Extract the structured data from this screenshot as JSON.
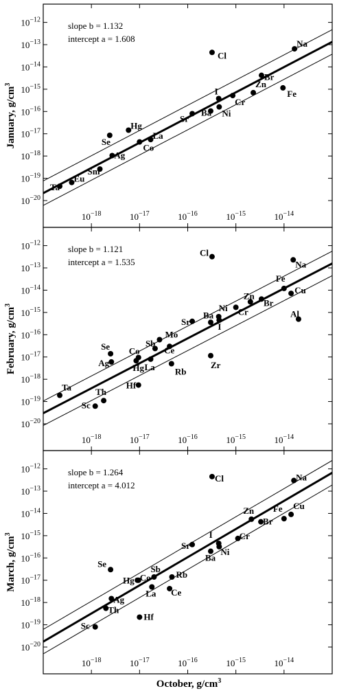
{
  "figure": {
    "x_label": "October, g/cm³"
  },
  "chart_data": [
    {
      "type": "scatter",
      "panel": "January",
      "ylabel": "January, g/cm³",
      "xlabel": "October, g/cm³",
      "x_scale": "log",
      "y_scale": "log",
      "xlim": [
        1e-19,
        1e-13
      ],
      "ylim": [
        2e-21,
        5e-12
      ],
      "x_ticks": [
        "10⁻¹⁸",
        "10⁻¹⁷",
        "10⁻¹⁶",
        "10⁻¹⁵",
        "10⁻¹⁴"
      ],
      "y_ticks": [
        "10⁻¹²",
        "10⁻¹³",
        "10⁻¹⁴",
        "10⁻¹⁵",
        "10⁻¹⁶",
        "10⁻¹⁷",
        "10⁻¹⁸",
        "10⁻¹⁹",
        "10⁻²⁰"
      ],
      "slope_label": "slope b = 1.132",
      "intercept_label": "intercept a = 1.608",
      "grid": false,
      "points": [
        {
          "label": "Ta",
          "x": 2.2e-19,
          "y": 4.4e-20
        },
        {
          "label": "Eu",
          "x": 3.9e-19,
          "y": 6.5e-20
        },
        {
          "label": "Sm",
          "x": 1.5e-18,
          "y": 2.6e-19
        },
        {
          "label": "Ag",
          "x": 2.7e-18,
          "y": 1.05e-18
        },
        {
          "label": "Se",
          "x": 2.4e-18,
          "y": 8.5e-18
        },
        {
          "label": "Hg",
          "x": 5.9e-18,
          "y": 1.45e-17
        },
        {
          "label": "Co",
          "x": 1e-17,
          "y": 4.3e-18
        },
        {
          "label": "La",
          "x": 1.7e-17,
          "y": 5.5e-18
        },
        {
          "label": "Sr",
          "x": 1.24e-16,
          "y": 8e-17
        },
        {
          "label": "Ba",
          "x": 3e-16,
          "y": 1.05e-16
        },
        {
          "label": "I",
          "x": 4.4e-16,
          "y": 3.8e-16
        },
        {
          "label": "Ni",
          "x": 4.5e-16,
          "y": 1.6e-16
        },
        {
          "label": "Cl",
          "x": 3.2e-16,
          "y": 4.5e-14
        },
        {
          "label": "Cr",
          "x": 8.6e-16,
          "y": 5.2e-16
        },
        {
          "label": "Zn",
          "x": 2.3e-15,
          "y": 7e-16
        },
        {
          "label": "Br",
          "x": 3.4e-15,
          "y": 4.2e-15
        },
        {
          "label": "Fe",
          "x": 9.5e-15,
          "y": 1.15e-15
        },
        {
          "label": "Na",
          "x": 1.65e-14,
          "y": 6.5e-14
        }
      ]
    },
    {
      "type": "scatter",
      "panel": "February",
      "ylabel": "February, g/cm³",
      "xlabel": "October, g/cm³",
      "x_scale": "log",
      "y_scale": "log",
      "xlim": [
        1e-19,
        1e-13
      ],
      "ylim": [
        2e-21,
        5e-12
      ],
      "x_ticks": [
        "10⁻¹⁸",
        "10⁻¹⁷",
        "10⁻¹⁶",
        "10⁻¹⁵",
        "10⁻¹⁴"
      ],
      "y_ticks": [
        "10⁻¹²",
        "10⁻¹³",
        "10⁻¹⁴",
        "10⁻¹⁵",
        "10⁻¹⁶",
        "10⁻¹⁷",
        "10⁻¹⁸",
        "10⁻¹⁹",
        "10⁻²⁰"
      ],
      "slope_label": "slope b = 1.121",
      "intercept_label": "intercept a = 1.535",
      "grid": false,
      "points": [
        {
          "label": "Ta",
          "x": 2.2e-19,
          "y": 1.9e-19
        },
        {
          "label": "Sc",
          "x": 1.2e-18,
          "y": 6.2e-20
        },
        {
          "label": "Th",
          "x": 1.8e-18,
          "y": 1.1e-19
        },
        {
          "label": "Se",
          "x": 2.5e-18,
          "y": 1.4e-17
        },
        {
          "label": "Ag",
          "x": 2.6e-18,
          "y": 6e-18
        },
        {
          "label": "Co",
          "x": 9.5e-18,
          "y": 9.5e-18
        },
        {
          "label": "Hg",
          "x": 8.5e-18,
          "y": 6.8e-18
        },
        {
          "label": "Hf",
          "x": 9.5e-18,
          "y": 5.5e-19
        },
        {
          "label": "La",
          "x": 1.7e-17,
          "y": 8e-18
        },
        {
          "label": "Sb",
          "x": 2.1e-17,
          "y": 2.4e-17
        },
        {
          "label": "Mo",
          "x": 2.6e-17,
          "y": 6e-17
        },
        {
          "label": "Ce",
          "x": 4.2e-17,
          "y": 3e-17
        },
        {
          "label": "Rb",
          "x": 4.6e-17,
          "y": 5e-18
        },
        {
          "label": "Sr",
          "x": 1.24e-16,
          "y": 4e-16
        },
        {
          "label": "Ba",
          "x": 3e-16,
          "y": 3.6e-16
        },
        {
          "label": "Ni",
          "x": 4.4e-16,
          "y": 6.5e-16
        },
        {
          "label": "I",
          "x": 4.5e-16,
          "y": 4.5e-16
        },
        {
          "label": "Zr",
          "x": 3e-16,
          "y": 1.15e-17
        },
        {
          "label": "Cl",
          "x": 3.2e-16,
          "y": 3.2e-13
        },
        {
          "label": "Cr",
          "x": 1e-15,
          "y": 1.7e-15
        },
        {
          "label": "Zn",
          "x": 2e-15,
          "y": 3e-15
        },
        {
          "label": "Br",
          "x": 3.4e-15,
          "y": 4e-15
        },
        {
          "label": "Fe",
          "x": 1e-14,
          "y": 1.2e-14
        },
        {
          "label": "Cu",
          "x": 1.4e-14,
          "y": 7.2e-15
        },
        {
          "label": "Al",
          "x": 2e-14,
          "y": 5e-16
        },
        {
          "label": "Na",
          "x": 1.55e-14,
          "y": 2.3e-13
        }
      ]
    },
    {
      "type": "scatter",
      "panel": "March",
      "ylabel": "March, g/cm³",
      "xlabel": "October, g/cm³",
      "x_scale": "log",
      "y_scale": "log",
      "xlim": [
        1e-19,
        1e-13
      ],
      "ylim": [
        2e-21,
        5e-12
      ],
      "x_ticks": [
        "10⁻¹⁸",
        "10⁻¹⁷",
        "10⁻¹⁶",
        "10⁻¹⁵",
        "10⁻¹⁴"
      ],
      "y_ticks": [
        "10⁻¹²",
        "10⁻¹³",
        "10⁻¹⁴",
        "10⁻¹⁵",
        "10⁻¹⁶",
        "10⁻¹⁷",
        "10⁻¹⁸",
        "10⁻¹⁹",
        "10⁻²⁰"
      ],
      "slope_label": "slope b = 1.264",
      "intercept_label": "intercept a = 4.012",
      "grid": false,
      "points": [
        {
          "label": "Sc",
          "x": 1.2e-18,
          "y": 8e-20
        },
        {
          "label": "Th",
          "x": 2e-18,
          "y": 5.5e-19
        },
        {
          "label": "Ag",
          "x": 2.6e-18,
          "y": 1.5e-18
        },
        {
          "label": "Se",
          "x": 2.5e-18,
          "y": 3e-17
        },
        {
          "label": "Hg",
          "x": 9e-18,
          "y": 1e-17
        },
        {
          "label": "Co",
          "x": 9.5e-18,
          "y": 1e-17
        },
        {
          "label": "Hf",
          "x": 1e-17,
          "y": 2.2e-19
        },
        {
          "label": "La",
          "x": 1.8e-17,
          "y": 5e-18
        },
        {
          "label": "Sb",
          "x": 2e-17,
          "y": 1.4e-17
        },
        {
          "label": "Ce",
          "x": 4.2e-17,
          "y": 4.2e-18
        },
        {
          "label": "Rb",
          "x": 4.7e-17,
          "y": 1.4e-17
        },
        {
          "label": "Sr",
          "x": 1.24e-16,
          "y": 4e-16
        },
        {
          "label": "Ba",
          "x": 3e-16,
          "y": 2e-16
        },
        {
          "label": "I",
          "x": 4.4e-16,
          "y": 4.5e-16
        },
        {
          "label": "Ni",
          "x": 4.5e-16,
          "y": 3.2e-16
        },
        {
          "label": "Cl",
          "x": 3.2e-16,
          "y": 4.5e-13
        },
        {
          "label": "Cr",
          "x": 1.1e-15,
          "y": 7.5e-16
        },
        {
          "label": "Zn",
          "x": 2.1e-15,
          "y": 5.5e-15
        },
        {
          "label": "Br",
          "x": 3.3e-15,
          "y": 4.2e-15
        },
        {
          "label": "Fe",
          "x": 1e-14,
          "y": 5.8e-15
        },
        {
          "label": "Cu",
          "x": 1.4e-14,
          "y": 9e-15
        },
        {
          "label": "Na",
          "x": 1.6e-14,
          "y": 3e-13
        }
      ]
    }
  ]
}
